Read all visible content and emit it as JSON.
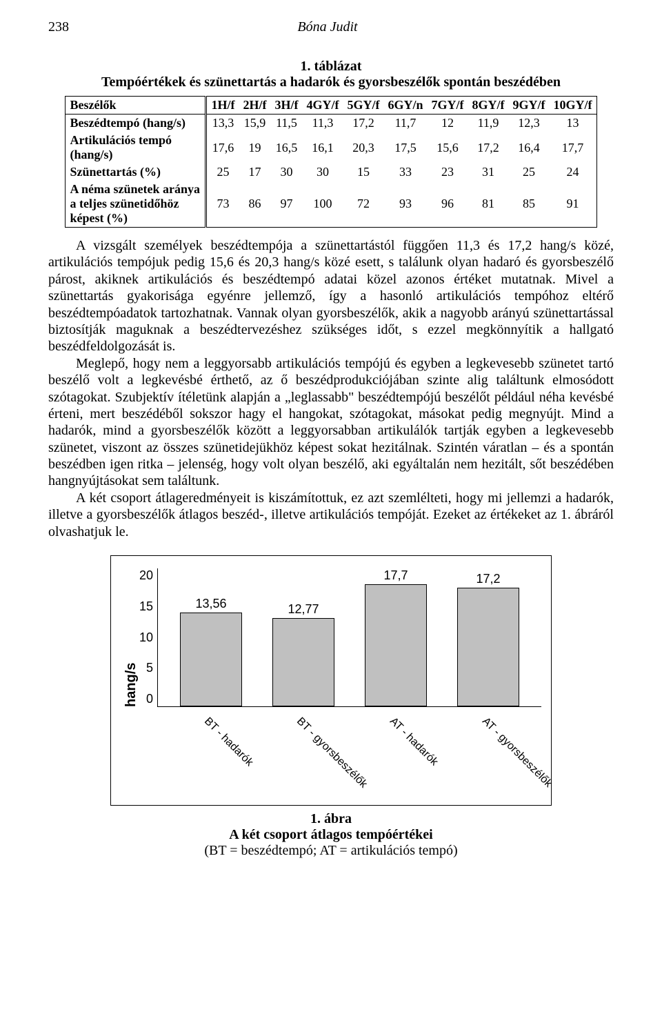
{
  "header": {
    "page_number": "238",
    "author": "Bóna Judit"
  },
  "table": {
    "title_line1": "1. táblázat",
    "title_line2": "Tempóértékek és szünettartás a hadarók és gyorsbeszélők spontán beszédében",
    "columns": [
      "Beszélők",
      "1H/f",
      "2H/f",
      "3H/f",
      "4GY/f",
      "5GY/f",
      "6GY/n",
      "7GY/f",
      "8GY/f",
      "9GY/f",
      "10GY/f"
    ],
    "rows": [
      {
        "label": "Beszédtempó (hang/s)",
        "cells": [
          "13,3",
          "15,9",
          "11,5",
          "11,3",
          "17,2",
          "11,7",
          "12",
          "11,9",
          "12,3",
          "13"
        ]
      },
      {
        "label": "Artikulációs tempó (hang/s)",
        "cells": [
          "17,6",
          "19",
          "16,5",
          "16,1",
          "20,3",
          "17,5",
          "15,6",
          "17,2",
          "16,4",
          "17,7"
        ]
      },
      {
        "label": "Szünettartás (%)",
        "cells": [
          "25",
          "17",
          "30",
          "30",
          "15",
          "33",
          "23",
          "31",
          "25",
          "24"
        ]
      },
      {
        "label": "A néma szünetek aránya a teljes szünetidőhöz képest (%)",
        "cells": [
          "73",
          "86",
          "97",
          "100",
          "72",
          "93",
          "96",
          "81",
          "85",
          "91"
        ]
      }
    ]
  },
  "paragraphs": {
    "p1": "A vizsgált személyek beszédtempója a szünettartástól függően 11,3 és 17,2 hang/s közé, artikulációs tempójuk pedig 15,6 és 20,3 hang/s közé esett, s találunk olyan hadaró és gyorsbeszélő párost, akiknek artikulációs és beszédtempó adatai közel azonos értéket mutatnak. Mivel a szünettartás gyakorisága egyénre jellemző, így a hasonló artikulációs tempóhoz eltérő beszédtempóadatok tartozhatnak. Vannak olyan gyorsbeszélők, akik a nagyobb arányú szünettartással biztosítják maguknak a beszédtervezéshez szükséges időt, s ezzel megkönnyítik a hallgató beszédfeldolgozását is.",
    "p2": "Meglepő, hogy nem a leggyorsabb artikulációs tempójú és egyben a legkevesebb szünetet tartó beszélő volt a legkevésbé érthető, az ő beszédprodukciójában szinte alig találtunk elmosódott szótagokat. Szubjektív ítéletünk alapján a „leglassabb\" beszédtempójú beszélőt például néha kevésbé érteni, mert beszédéből sokszor hagy el hangokat, szótagokat, másokat pedig megnyújt. Mind a hadarók, mind a gyorsbeszélők között a leggyorsabban artikulálók tartják egyben a legkevesebb szünetet, viszont az összes szünetidejükhöz képest sokat hezitálnak. Szintén váratlan – és a spontán beszédben igen ritka – jelenség, hogy volt olyan beszélő, aki egyáltalán nem hezitált, sőt beszédében hangnyújtásokat sem találtunk.",
    "p3": "A két csoport átlageredményeit is kiszámítottuk, ez azt szemlélteti, hogy mi jellemzi a hadarók, illetve a gyorsbeszélők átlagos beszéd-, illetve artikulációs tempóját. Ezeket az értékeket az 1. ábráról olvashatjuk le."
  },
  "chart": {
    "type": "bar",
    "y_label": "hang/s",
    "y_ticks": [
      "20",
      "15",
      "10",
      "5",
      "0"
    ],
    "y_max": 20,
    "bar_color": "#c0c0c0",
    "bar_border": "#000000",
    "axis_color": "#000000",
    "background_color": "#ffffff",
    "font_family": "Arial",
    "value_fontsize": 18,
    "tick_fontsize": 18,
    "ylabel_fontsize": 20,
    "bars": [
      {
        "label": "BT - hadarók",
        "value": 13.56,
        "value_text": "13,56"
      },
      {
        "label": "BT - gyorsbeszélők",
        "value": 12.77,
        "value_text": "12,77"
      },
      {
        "label": "AT - hadarók",
        "value": 17.7,
        "value_text": "17,7"
      },
      {
        "label": "AT - gyorsbeszélők",
        "value": 17.2,
        "value_text": "17,2"
      }
    ]
  },
  "figure_caption": {
    "line1": "1. ábra",
    "line2": "A két csoport átlagos tempóértékei",
    "line3": "(BT = beszédtempó; AT = artikulációs tempó)"
  }
}
